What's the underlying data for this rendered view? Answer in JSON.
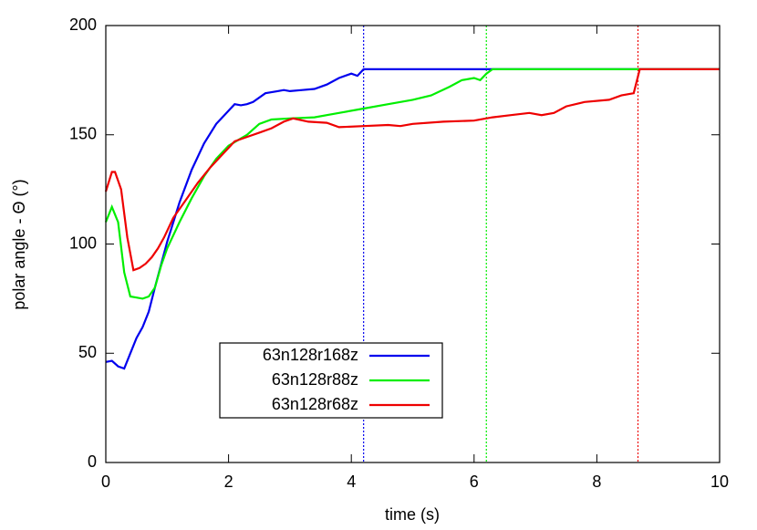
{
  "chart_data": {
    "type": "line",
    "x_label": "time (s)",
    "y_label": "polar angle - Θ (°)",
    "xlim": [
      0,
      10
    ],
    "xticks": [
      0,
      2,
      4,
      6,
      8,
      10
    ],
    "ylim": [
      0,
      200
    ],
    "yticks": [
      0,
      50,
      100,
      150,
      200
    ],
    "series": [
      {
        "name": "63n128r168z",
        "color": "#0000ee",
        "x": [
          0,
          0.1,
          0.2,
          0.3,
          0.4,
          0.5,
          0.6,
          0.7,
          0.8,
          1.0,
          1.2,
          1.4,
          1.6,
          1.8,
          2.0,
          2.1,
          2.2,
          2.3,
          2.4,
          2.6,
          2.8,
          2.9,
          3.0,
          3.2,
          3.4,
          3.6,
          3.8,
          4.0,
          4.1,
          4.2,
          10
        ],
        "values": [
          46,
          46.5,
          44,
          43,
          50,
          57,
          62,
          69,
          80,
          101,
          119,
          134,
          146,
          155,
          161,
          164,
          163.5,
          164,
          165,
          169,
          170,
          170.5,
          170,
          170.5,
          171,
          173,
          176,
          178,
          177,
          180,
          180
        ]
      },
      {
        "name": "63n128r88z",
        "color": "#00ee00",
        "x": [
          0,
          0.1,
          0.2,
          0.3,
          0.4,
          0.5,
          0.6,
          0.7,
          0.8,
          0.9,
          1.0,
          1.2,
          1.4,
          1.6,
          1.8,
          2.0,
          2.3,
          2.5,
          2.7,
          3.0,
          3.4,
          3.8,
          4.2,
          4.6,
          5.0,
          5.3,
          5.6,
          5.8,
          6.0,
          6.1,
          6.2,
          6.3,
          10
        ],
        "values": [
          110,
          117,
          110,
          87,
          76,
          75.5,
          75,
          76,
          80,
          90,
          98,
          110,
          121,
          131,
          139,
          145,
          150,
          155,
          157,
          157.5,
          158,
          160,
          162,
          164,
          166,
          168,
          172,
          175,
          176,
          175,
          178,
          180,
          180
        ]
      },
      {
        "name": "63n128r68z",
        "color": "#ee0000",
        "x": [
          0,
          0.1,
          0.15,
          0.25,
          0.35,
          0.45,
          0.55,
          0.65,
          0.75,
          0.85,
          0.95,
          1.1,
          1.3,
          1.5,
          1.7,
          1.9,
          2.1,
          2.3,
          2.5,
          2.7,
          2.9,
          3.05,
          3.3,
          3.6,
          3.8,
          4.2,
          4.6,
          4.8,
          5.0,
          5.5,
          6.0,
          6.3,
          6.6,
          6.9,
          7.1,
          7.3,
          7.5,
          7.8,
          8.2,
          8.4,
          8.6,
          8.7,
          10
        ],
        "values": [
          124,
          133,
          133,
          125,
          103,
          88,
          89,
          91,
          94,
          98,
          103,
          112,
          120,
          128,
          135,
          141,
          147,
          149,
          151,
          153,
          156,
          157.5,
          156,
          155.5,
          153.5,
          154,
          154.5,
          154,
          155,
          156,
          156.5,
          158,
          159,
          160,
          159,
          160,
          163,
          165,
          166,
          168,
          169,
          180,
          180
        ]
      }
    ],
    "vlines": [
      {
        "x": 4.2,
        "color": "#0000ee"
      },
      {
        "x": 6.2,
        "color": "#00ee00"
      },
      {
        "x": 8.67,
        "color": "#ee0000"
      }
    ]
  }
}
